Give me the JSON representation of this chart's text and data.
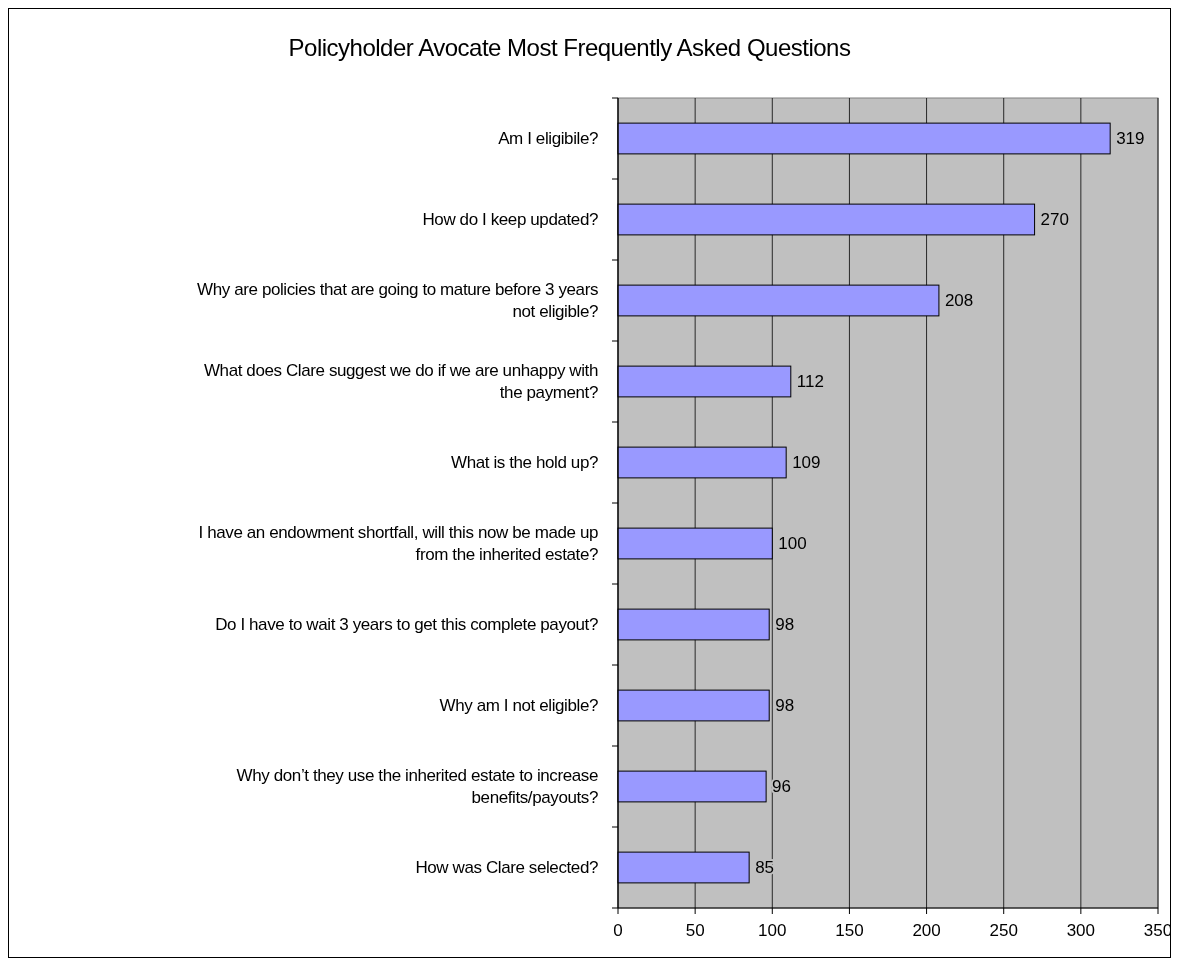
{
  "chart_data": {
    "type": "bar",
    "orientation": "horizontal",
    "title": "Policyholder Avocate Most Frequently Asked Questions",
    "categories": [
      "Am I eligibile?",
      "How do I keep updated?",
      "Why are policies that are going to mature before 3 years not eligible?",
      "What does Clare suggest we do if we are unhappy with the payment?",
      "What is the hold up?",
      "I have an endowment shortfall, will this now be made up from the inherited estate?",
      "Do I have to wait 3 years to get this complete payout?",
      "Why am I not eligible?",
      "Why don’t they use the inherited estate to increase benefits/payouts?",
      "How was Clare selected?"
    ],
    "values": [
      319,
      270,
      208,
      112,
      109,
      100,
      98,
      98,
      96,
      85
    ],
    "color": "#9999ff",
    "data_labels": true,
    "grid": "x",
    "xlim": [
      0,
      350
    ],
    "xticks": [
      0,
      50,
      100,
      150,
      200,
      250,
      300,
      350
    ]
  }
}
